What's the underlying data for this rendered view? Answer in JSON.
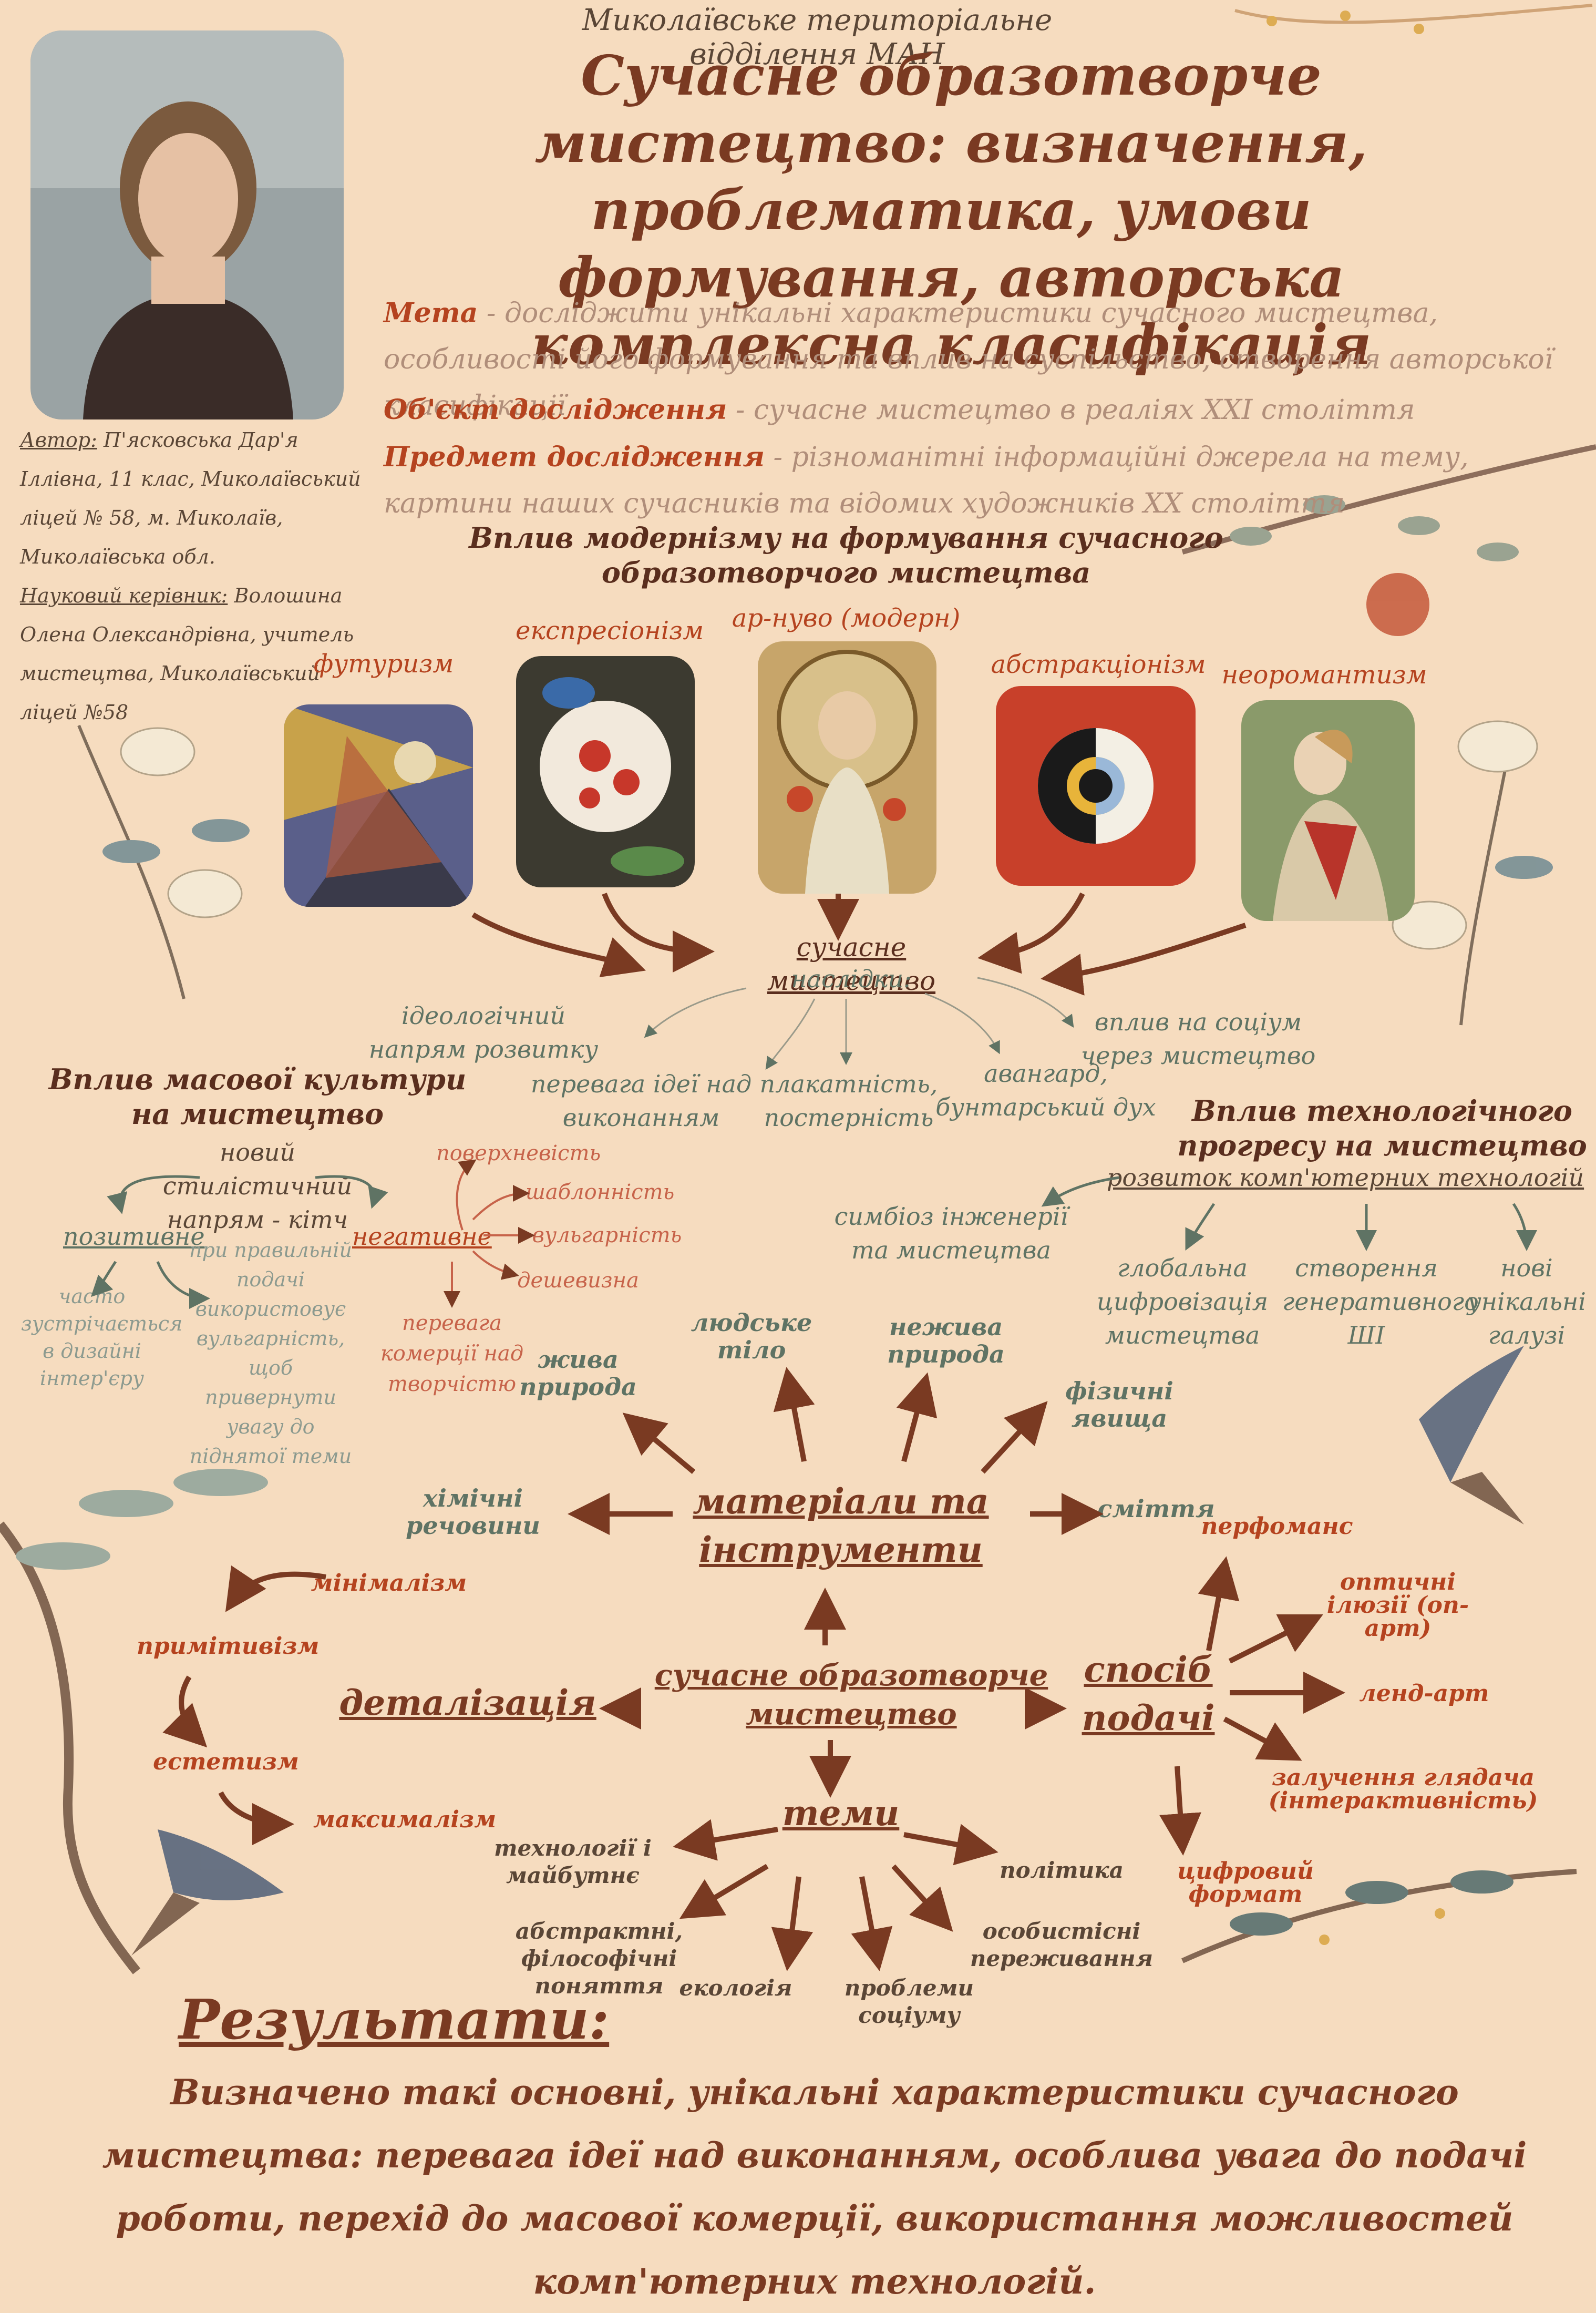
{
  "header": {
    "org": "Миколаївське територіальне відділення МАН",
    "title": "Сучасне образотворче мистецтво: визначення, проблематика, умови формування, авторська комплексна класифікація"
  },
  "goals": {
    "aim_label": "Мета",
    "aim_text": " - досліджити унікальні характеристики сучасного мистецтва, особливості його формування та вплив на суспільство, створення авторської класифікації",
    "object_label": "Об'єкт дослідження",
    "object_text": " - сучасне мистецтво в реаліях XXI століття",
    "subject_label": "Предмет дослідження",
    "subject_text": " - різноманітні інформаційні джерела на тему, картини наших сучасників та відомих художників XX століття"
  },
  "author": {
    "author_label": "Автор:",
    "author_text": " П'ясковська Дар'я Іллівна, 11 клас, Миколаївський ліцей № 58, м. Миколаїв, Миколаївська обл.",
    "supervisor_label": "Науковий керівник:",
    "supervisor_text": " Волошина Олена Олександрівна, учитель мистецтва, Миколаївський ліцей №58"
  },
  "modernism": {
    "heading": "Вплив модернізму на формування сучасного образотворчого мистецтва",
    "styles": [
      "футуризм",
      "експресіонізм",
      "ар-нуво (модерн)",
      "абстракціонізм",
      "неоромантизм"
    ],
    "center": "сучасне мистецтво",
    "center_sub": "наслідки:",
    "consequences": [
      "ідеологічний напрям розвитку",
      "перевага ідеї над виконанням",
      "плакатність, постерність",
      "авангард, бунтарський дух",
      "вплив на соціум через мистецтво"
    ]
  },
  "mass_culture": {
    "heading": "Вплив масової культури на мистецтво",
    "new_style": "новий стилістичний напрям - кітч",
    "positive": "позитивне",
    "positive_items": [
      "часто зустрічається в дизайні інтер'єру",
      "при правильній подачі використовує вульгарність, щоб привернути увагу до піднятої теми"
    ],
    "negative": "негативне",
    "negative_items": [
      "поверхневість",
      "шаблонність",
      "вульгарність",
      "дешевизна",
      "перевага комерції над творчістю"
    ]
  },
  "tech": {
    "heading": "Вплив технологічного прогресу на мистецтво",
    "main": "розвиток комп'ютерних технологій",
    "items": [
      "симбіоз інженерії та мистецтва",
      "глобальна цифровізація мистецтва",
      "створення генеративного ШІ",
      "нові унікальні галузі"
    ]
  },
  "classification": {
    "center": "сучасне образотворче мистецтво",
    "materials": "матеріали та інструменти",
    "material_items": [
      "жива природа",
      "людське тіло",
      "нежива природа",
      "фізичні явища",
      "хімічні речовини",
      "сміття"
    ],
    "detail": "деталізація",
    "detail_items": [
      "мінімалізм",
      "примітивізм",
      "естетизм",
      "максималізм"
    ],
    "method": "спосіб подачі",
    "method_items": [
      "перфоманс",
      "оптичні ілюзії (оп-арт)",
      "ленд-арт",
      "залучення глядача (інтерактивність)",
      "цифровий формат"
    ],
    "themes": "теми",
    "theme_items": [
      "технології і майбутнє",
      "абстрактні, філософічні поняття",
      "екологія",
      "проблеми соціуму",
      "особистісні переживання",
      "політика"
    ]
  },
  "results": {
    "title": "Результати:",
    "text": "Визначено такі основні, унікальні характеристики сучасного мистецтва: перевага ідеї над виконанням, особлива увага до подачі роботи, перехід до масової комерції, використання можливостей комп'ютерних технологій."
  },
  "colors": {
    "background": "#f6dcbf",
    "accent": "#7a3a22",
    "rust": "#b5431f",
    "sage": "#5f7364"
  }
}
